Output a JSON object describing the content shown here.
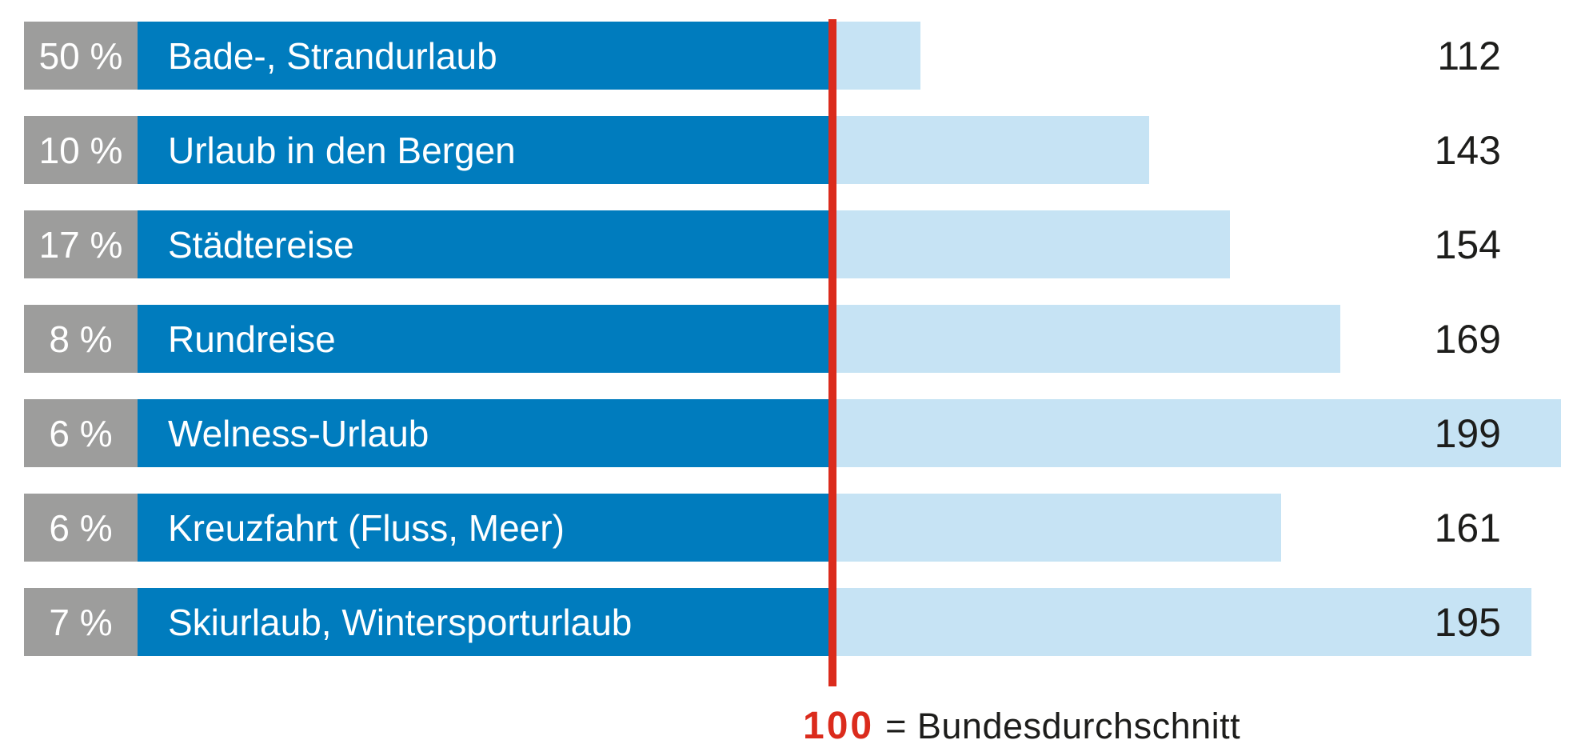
{
  "chart_data": {
    "type": "bar",
    "orientation": "horizontal",
    "title": "",
    "categories": [
      "Bade-, Strandurlaub",
      "Urlaub in den Bergen",
      "Städtereise",
      "Rundreise",
      "Welness-Urlaub",
      "Kreuzfahrt (Fluss, Meer)",
      "Skiurlaub, Wintersporturlaub"
    ],
    "percent_labels": [
      "50 %",
      "10 %",
      "17 %",
      "8 %",
      "6 %",
      "6 %",
      "7 %"
    ],
    "values": [
      112,
      143,
      154,
      169,
      199,
      161,
      195
    ],
    "rows": [
      {
        "percent_label": "50 %",
        "percent": 50,
        "label": "Bade-, Strandurlaub",
        "value": 112
      },
      {
        "percent_label": "10 %",
        "percent": 10,
        "label": "Urlaub in den Bergen",
        "value": 143
      },
      {
        "percent_label": "17 %",
        "percent": 17,
        "label": "Städtereise",
        "value": 154
      },
      {
        "percent_label": "8 %",
        "percent": 8,
        "label": "Rundreise",
        "value": 169
      },
      {
        "percent_label": "6 %",
        "percent": 6,
        "label": "Welness-Urlaub",
        "value": 199
      },
      {
        "percent_label": "6 %",
        "percent": 6,
        "label": "Kreuzfahrt (Fluss, Meer)",
        "value": 161
      },
      {
        "percent_label": "7 %",
        "percent": 7,
        "label": "Skiurlaub, Wintersporturlaub",
        "value": 195
      }
    ],
    "reference_line": {
      "value": 100,
      "label": "100",
      "note": "= Bundesdurchschnitt"
    },
    "value_axis_range": [
      100,
      200
    ],
    "grid": false,
    "legend_position": "bottom"
  },
  "legend": {
    "value": "100",
    "text": "= Bundesdurchschnitt"
  },
  "colors": {
    "dark_blue": "#007CBE",
    "light_blue": "#C6E3F4",
    "gray": "#9D9D9C",
    "red": "#DB2B1C",
    "ink": "#1D1D1B",
    "bg": "#FFFFFF"
  }
}
